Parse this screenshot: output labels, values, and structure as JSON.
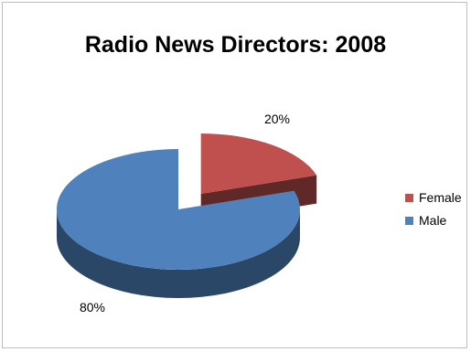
{
  "chart_data": {
    "type": "pie",
    "title": "Radio News Directors: 2008",
    "categories": [
      "Female",
      "Male"
    ],
    "values": [
      20,
      80
    ],
    "data_labels": [
      "20%",
      "80%"
    ],
    "colors": {
      "Female": "#c0504d",
      "Male": "#4f81bd"
    },
    "legend_position": "right",
    "three_d": true,
    "exploded": "Female"
  }
}
